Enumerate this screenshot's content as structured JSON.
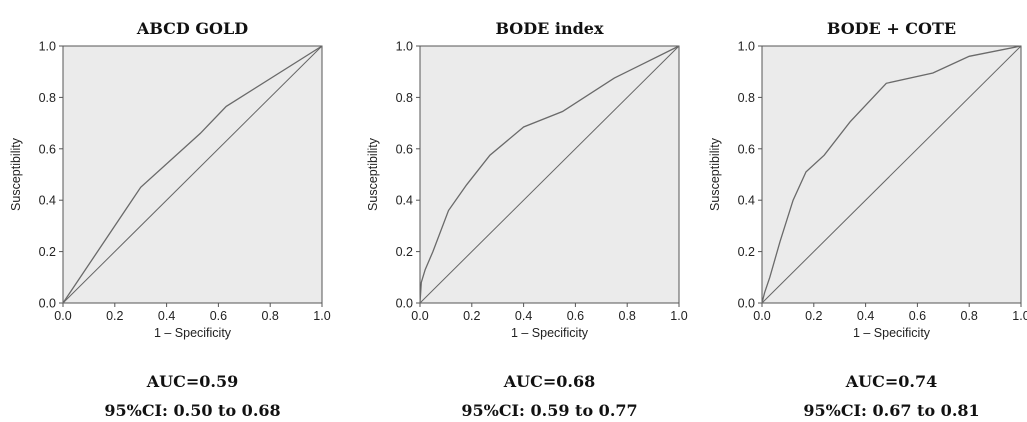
{
  "chart_data": [
    {
      "type": "line",
      "title": "ABCD GOLD",
      "xlabel": "1 – Specificity",
      "ylabel": "Susceptibility",
      "xlim": [
        0,
        1
      ],
      "ylim": [
        0,
        1
      ],
      "ticks": [
        "0.0",
        "0.2",
        "0.4",
        "0.6",
        "0.8",
        "1.0"
      ],
      "reference_line": true,
      "x": [
        0.0,
        0.3,
        0.53,
        0.63,
        1.0
      ],
      "y": [
        0.0,
        0.45,
        0.66,
        0.765,
        1.0
      ],
      "auc_text": "AUC=0.59",
      "ci_text": "95%CI: 0.50 to 0.68"
    },
    {
      "type": "line",
      "title": "BODE index",
      "xlabel": "1 – Specificity",
      "ylabel": "Susceptibility",
      "xlim": [
        0,
        1
      ],
      "ylim": [
        0,
        1
      ],
      "ticks": [
        "0.0",
        "0.2",
        "0.4",
        "0.6",
        "0.8",
        "1.0"
      ],
      "reference_line": true,
      "x": [
        0.0,
        0.005,
        0.02,
        0.05,
        0.11,
        0.18,
        0.27,
        0.4,
        0.55,
        0.75,
        1.0
      ],
      "y": [
        0.0,
        0.08,
        0.13,
        0.2,
        0.36,
        0.46,
        0.575,
        0.685,
        0.745,
        0.875,
        1.0
      ],
      "auc_text": "AUC=0.68",
      "ci_text": "95%CI: 0.59 to 0.77"
    },
    {
      "type": "line",
      "title": "BODE + COTE",
      "xlabel": "1 – Specificity",
      "ylabel": "Susceptibility",
      "xlim": [
        0,
        1
      ],
      "ylim": [
        0,
        1
      ],
      "ticks": [
        "0.0",
        "0.2",
        "0.4",
        "0.6",
        "0.8",
        "1.0"
      ],
      "reference_line": true,
      "x": [
        0.0,
        0.01,
        0.03,
        0.07,
        0.12,
        0.17,
        0.24,
        0.34,
        0.48,
        0.66,
        0.8,
        1.0
      ],
      "y": [
        0.0,
        0.04,
        0.1,
        0.24,
        0.4,
        0.51,
        0.575,
        0.705,
        0.855,
        0.895,
        0.96,
        1.0
      ],
      "auc_text": "AUC=0.74",
      "ci_text": "95%CI: 0.67 to 0.81"
    }
  ]
}
